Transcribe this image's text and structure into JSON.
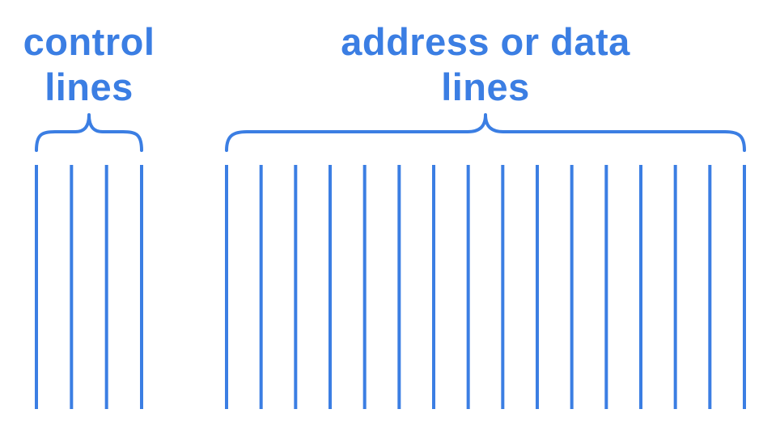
{
  "diagram": {
    "color": "#3b7ee3",
    "control_group": {
      "label_line1": "control",
      "label_line2": "lines",
      "line_count": 4
    },
    "address_group": {
      "label_line1": "address or data",
      "label_line2": "lines",
      "line_count": 16
    }
  }
}
